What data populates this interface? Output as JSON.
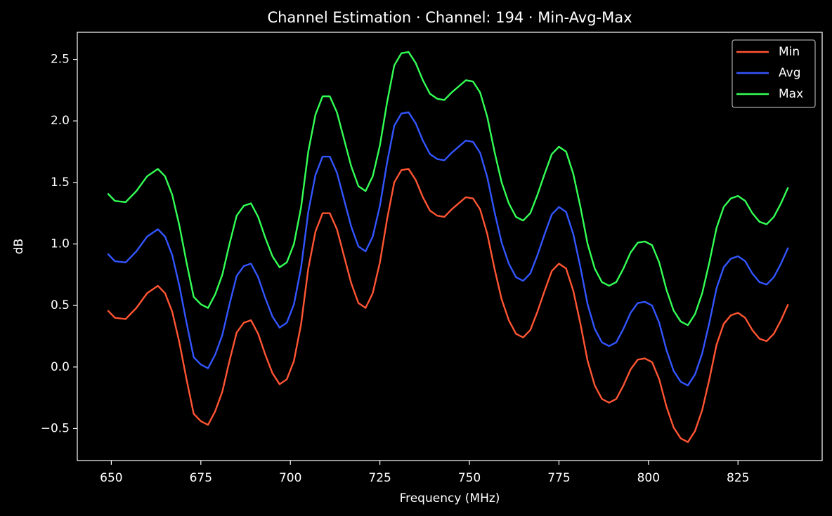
{
  "chart_data": {
    "type": "line",
    "title": "Channel Estimation · Channel: 194 · Min-Avg-Max",
    "x_label": "Frequency (MHz)",
    "y_label": "dB",
    "xlim": [
      640.5,
      848.5
    ],
    "ylim": [
      -0.76,
      2.72
    ],
    "xticks": [
      650,
      675,
      700,
      725,
      750,
      775,
      800,
      825
    ],
    "yticks": [
      {
        "value": -0.5,
        "label": "−0.5"
      },
      {
        "value": 0,
        "label": "0.0"
      },
      0.5,
      {
        "value": 1,
        "label": "1.0"
      },
      1.5,
      {
        "value": 2,
        "label": "2.0"
      },
      2.5
    ],
    "legend": "upper right",
    "grid": false,
    "x": [
      649,
      651,
      654,
      657,
      660,
      663,
      665,
      667,
      669,
      671,
      673,
      675,
      677,
      679,
      681,
      683,
      685,
      687,
      689,
      691,
      693,
      695,
      697,
      699,
      701,
      703,
      705,
      707,
      709,
      711,
      713,
      715,
      717,
      719,
      721,
      723,
      725,
      727,
      729,
      731,
      733,
      735,
      737,
      739,
      741,
      743,
      745,
      747,
      749,
      751,
      753,
      755,
      757,
      759,
      761,
      763,
      765,
      767,
      769,
      771,
      773,
      775,
      777,
      779,
      781,
      783,
      785,
      787,
      789,
      791,
      793,
      795,
      797,
      799,
      801,
      803,
      805,
      807,
      809,
      811,
      813,
      815,
      817,
      819,
      821,
      823,
      825,
      827,
      829,
      831,
      833,
      835,
      837,
      839
    ],
    "series": [
      {
        "name": "Min",
        "color": "#ff5533",
        "values": [
          0.46,
          0.4,
          0.39,
          0.48,
          0.6,
          0.66,
          0.6,
          0.45,
          0.2,
          -0.1,
          -0.38,
          -0.44,
          -0.47,
          -0.36,
          -0.2,
          0.05,
          0.28,
          0.36,
          0.38,
          0.27,
          0.1,
          -0.05,
          -0.14,
          -0.1,
          0.05,
          0.35,
          0.8,
          1.1,
          1.25,
          1.25,
          1.12,
          0.9,
          0.68,
          0.52,
          0.48,
          0.6,
          0.85,
          1.2,
          1.5,
          1.6,
          1.61,
          1.52,
          1.38,
          1.27,
          1.23,
          1.22,
          1.28,
          1.33,
          1.38,
          1.37,
          1.28,
          1.08,
          0.8,
          0.55,
          0.38,
          0.27,
          0.24,
          0.3,
          0.45,
          0.62,
          0.78,
          0.84,
          0.8,
          0.62,
          0.35,
          0.05,
          -0.15,
          -0.26,
          -0.29,
          -0.26,
          -0.15,
          -0.02,
          0.06,
          0.07,
          0.04,
          -0.1,
          -0.32,
          -0.49,
          -0.58,
          -0.61,
          -0.52,
          -0.35,
          -0.1,
          0.18,
          0.35,
          0.42,
          0.44,
          0.4,
          0.3,
          0.23,
          0.21,
          0.27,
          0.38,
          0.51
        ]
      },
      {
        "name": "Avg",
        "color": "#3355ff",
        "values": [
          0.92,
          0.86,
          0.85,
          0.94,
          1.06,
          1.12,
          1.06,
          0.91,
          0.66,
          0.36,
          0.08,
          0.02,
          -0.01,
          0.1,
          0.26,
          0.51,
          0.74,
          0.82,
          0.84,
          0.73,
          0.56,
          0.41,
          0.32,
          0.36,
          0.51,
          0.81,
          1.26,
          1.56,
          1.71,
          1.71,
          1.58,
          1.36,
          1.14,
          0.98,
          0.94,
          1.06,
          1.31,
          1.66,
          1.96,
          2.06,
          2.07,
          1.98,
          1.84,
          1.73,
          1.69,
          1.68,
          1.74,
          1.79,
          1.84,
          1.83,
          1.74,
          1.54,
          1.26,
          1.01,
          0.84,
          0.73,
          0.7,
          0.76,
          0.91,
          1.08,
          1.24,
          1.3,
          1.26,
          1.08,
          0.81,
          0.51,
          0.31,
          0.2,
          0.17,
          0.2,
          0.31,
          0.44,
          0.52,
          0.53,
          0.5,
          0.36,
          0.14,
          -0.03,
          -0.12,
          -0.15,
          -0.06,
          0.11,
          0.36,
          0.64,
          0.81,
          0.88,
          0.9,
          0.86,
          0.76,
          0.69,
          0.67,
          0.73,
          0.84,
          0.97
        ]
      },
      {
        "name": "Max",
        "color": "#33ff55",
        "values": [
          1.41,
          1.35,
          1.34,
          1.43,
          1.55,
          1.61,
          1.55,
          1.4,
          1.15,
          0.85,
          0.57,
          0.51,
          0.48,
          0.59,
          0.75,
          1.0,
          1.23,
          1.31,
          1.33,
          1.22,
          1.05,
          0.9,
          0.81,
          0.85,
          1.0,
          1.3,
          1.75,
          2.05,
          2.2,
          2.2,
          2.07,
          1.85,
          1.63,
          1.47,
          1.43,
          1.55,
          1.8,
          2.15,
          2.45,
          2.55,
          2.56,
          2.47,
          2.33,
          2.22,
          2.18,
          2.17,
          2.23,
          2.28,
          2.33,
          2.32,
          2.23,
          2.03,
          1.75,
          1.5,
          1.33,
          1.22,
          1.19,
          1.25,
          1.4,
          1.57,
          1.73,
          1.79,
          1.75,
          1.57,
          1.3,
          1.0,
          0.8,
          0.69,
          0.66,
          0.69,
          0.8,
          0.93,
          1.01,
          1.02,
          0.99,
          0.85,
          0.63,
          0.46,
          0.37,
          0.34,
          0.43,
          0.6,
          0.85,
          1.13,
          1.3,
          1.37,
          1.39,
          1.35,
          1.25,
          1.18,
          1.16,
          1.22,
          1.33,
          1.46
        ]
      }
    ]
  }
}
